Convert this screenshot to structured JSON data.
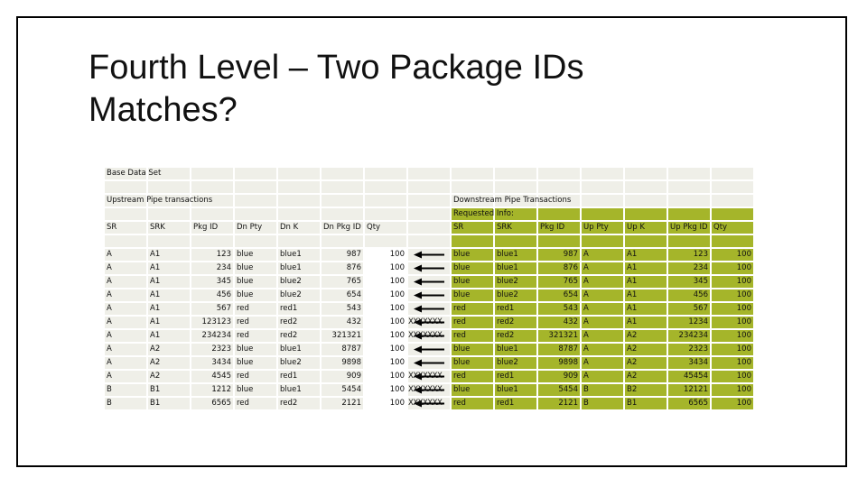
{
  "slide": {
    "title_line1": "Fourth Level – Two Package IDs",
    "title_line2": "Matches?"
  },
  "labels": {
    "base_data_set": "Base Data Set",
    "upstream": "Upstream Pipe transactions",
    "downstream": "Downstream Pipe Transactions",
    "requested_info": "Requested Info:"
  },
  "upstream_headers": [
    "SR",
    "SRK",
    "Pkg ID",
    "Dn Pty",
    "Dn K",
    "Dn Pkg ID",
    "Qty"
  ],
  "downstream_headers": [
    "SR",
    "SRK",
    "Pkg ID",
    "Up Pty",
    "Up K",
    "Up Pkg ID",
    "Qty"
  ],
  "colors": {
    "green": "#a5b52a",
    "grey_cell": "#efefe8"
  },
  "match_marker": {
    "matched": "arrow-left",
    "unmatched": "XXXXXXX"
  },
  "rows": [
    {
      "up": [
        "A",
        "A1",
        "123",
        "blue",
        "blue1",
        "987",
        "100"
      ],
      "match": true,
      "dn": [
        "blue",
        "blue1",
        "987",
        "A",
        "A1",
        "123",
        "100"
      ]
    },
    {
      "up": [
        "A",
        "A1",
        "234",
        "blue",
        "blue1",
        "876",
        "100"
      ],
      "match": true,
      "dn": [
        "blue",
        "blue1",
        "876",
        "A",
        "A1",
        "234",
        "100"
      ]
    },
    {
      "up": [
        "A",
        "A1",
        "345",
        "blue",
        "blue2",
        "765",
        "100"
      ],
      "match": true,
      "dn": [
        "blue",
        "blue2",
        "765",
        "A",
        "A1",
        "345",
        "100"
      ]
    },
    {
      "up": [
        "A",
        "A1",
        "456",
        "blue",
        "blue2",
        "654",
        "100"
      ],
      "match": true,
      "dn": [
        "blue",
        "blue2",
        "654",
        "A",
        "A1",
        "456",
        "100"
      ]
    },
    {
      "up": [
        "A",
        "A1",
        "567",
        "red",
        "red1",
        "543",
        "100"
      ],
      "match": true,
      "dn": [
        "red",
        "red1",
        "543",
        "A",
        "A1",
        "567",
        "100"
      ]
    },
    {
      "up": [
        "A",
        "A1",
        "123123",
        "red",
        "red2",
        "432",
        "100"
      ],
      "match": false,
      "dn": [
        "red",
        "red2",
        "432",
        "A",
        "A1",
        "1234",
        "100"
      ]
    },
    {
      "up": [
        "A",
        "A1",
        "234234",
        "red",
        "red2",
        "321321",
        "100"
      ],
      "match": false,
      "dn": [
        "red",
        "red2",
        "321321",
        "A",
        "A2",
        "234234",
        "100"
      ]
    },
    {
      "up": [
        "A",
        "A2",
        "2323",
        "blue",
        "blue1",
        "8787",
        "100"
      ],
      "match": true,
      "dn": [
        "blue",
        "blue1",
        "8787",
        "A",
        "A2",
        "2323",
        "100"
      ]
    },
    {
      "up": [
        "A",
        "A2",
        "3434",
        "blue",
        "blue2",
        "9898",
        "100"
      ],
      "match": true,
      "dn": [
        "blue",
        "blue2",
        "9898",
        "A",
        "A2",
        "3434",
        "100"
      ]
    },
    {
      "up": [
        "A",
        "A2",
        "4545",
        "red",
        "red1",
        "909",
        "100"
      ],
      "match": false,
      "dn": [
        "red",
        "red1",
        "909",
        "A",
        "A2",
        "45454",
        "100"
      ]
    },
    {
      "up": [
        "B",
        "B1",
        "1212",
        "blue",
        "blue1",
        "5454",
        "100"
      ],
      "match": false,
      "dn": [
        "blue",
        "blue1",
        "5454",
        "B",
        "B2",
        "12121",
        "100"
      ]
    },
    {
      "up": [
        "B",
        "B1",
        "6565",
        "red",
        "red2",
        "2121",
        "100"
      ],
      "match": false,
      "dn": [
        "red",
        "red1",
        "2121",
        "B",
        "B1",
        "6565",
        "100"
      ]
    }
  ]
}
